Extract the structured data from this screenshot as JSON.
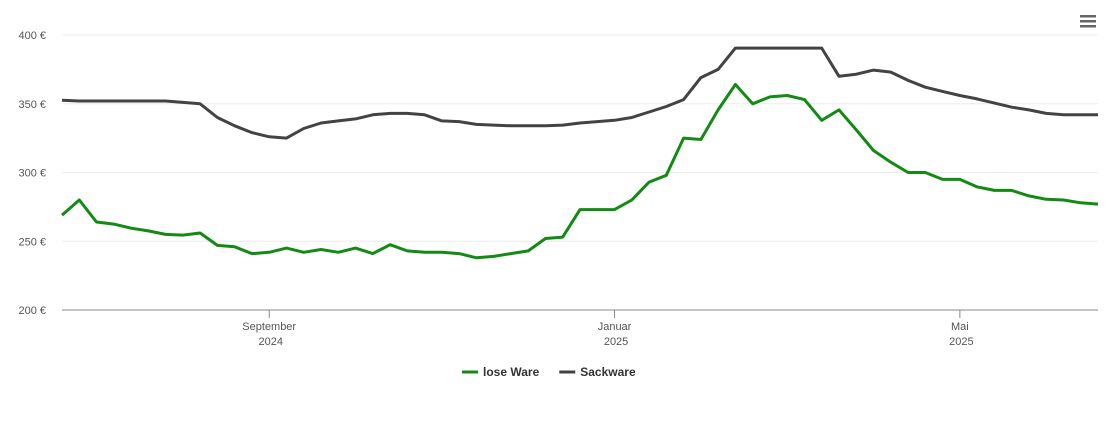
{
  "chart_data": {
    "type": "line",
    "categories": [
      null,
      null,
      null,
      null,
      null,
      null,
      null,
      null,
      null,
      null,
      null,
      null,
      "September 2024",
      null,
      null,
      null,
      null,
      null,
      null,
      null,
      null,
      null,
      null,
      null,
      null,
      null,
      null,
      null,
      null,
      null,
      null,
      null,
      "Januar 2025",
      null,
      null,
      null,
      null,
      null,
      null,
      null,
      null,
      null,
      null,
      null,
      null,
      null,
      null,
      null,
      null,
      null,
      null,
      null,
      "Mai 2025",
      null,
      null,
      null,
      null,
      null,
      null,
      null,
      null
    ],
    "series": [
      {
        "name": "lose Ware",
        "color": "#138a13",
        "values": [
          269,
          280,
          264,
          262.5,
          259.5,
          257.5,
          255,
          254.5,
          256,
          247,
          246,
          241,
          242,
          245,
          242,
          244,
          242,
          245,
          241,
          247.5,
          243,
          242,
          242,
          241,
          238,
          239,
          241,
          243,
          252,
          253,
          273,
          273,
          273,
          280,
          293,
          298,
          325,
          324,
          345.5,
          364,
          350,
          355,
          356,
          353,
          338,
          345.5,
          331,
          316,
          307.5,
          300,
          300,
          295,
          295,
          289.5,
          287,
          287,
          283,
          280.5,
          280,
          278,
          277
        ]
      },
      {
        "name": "Sackware",
        "color": "#434343",
        "values": [
          352.5,
          352,
          352,
          352,
          352,
          352,
          352,
          351,
          350,
          340,
          334,
          329,
          326,
          325,
          332,
          336,
          337.5,
          339,
          342,
          343,
          343,
          342,
          337.5,
          337,
          335,
          334.5,
          334,
          334,
          334,
          334.5,
          336,
          337,
          338,
          340,
          344,
          348,
          353,
          369,
          375,
          390.5,
          390.5,
          390.5,
          390.5,
          390.5,
          390.5,
          370,
          371.5,
          374.5,
          373,
          367,
          362,
          359,
          356,
          353.5,
          350.5,
          347.5,
          345.5,
          343,
          342,
          342,
          342
        ]
      }
    ],
    "ylim": [
      200,
      400
    ],
    "yticks": [
      {
        "value": 200,
        "label": "200 €"
      },
      {
        "value": 250,
        "label": "250 €"
      },
      {
        "value": 300,
        "label": "300 €"
      },
      {
        "value": 350,
        "label": "350 €"
      },
      {
        "value": 400,
        "label": "400 €"
      }
    ],
    "grid": true,
    "legend": "bottom"
  }
}
